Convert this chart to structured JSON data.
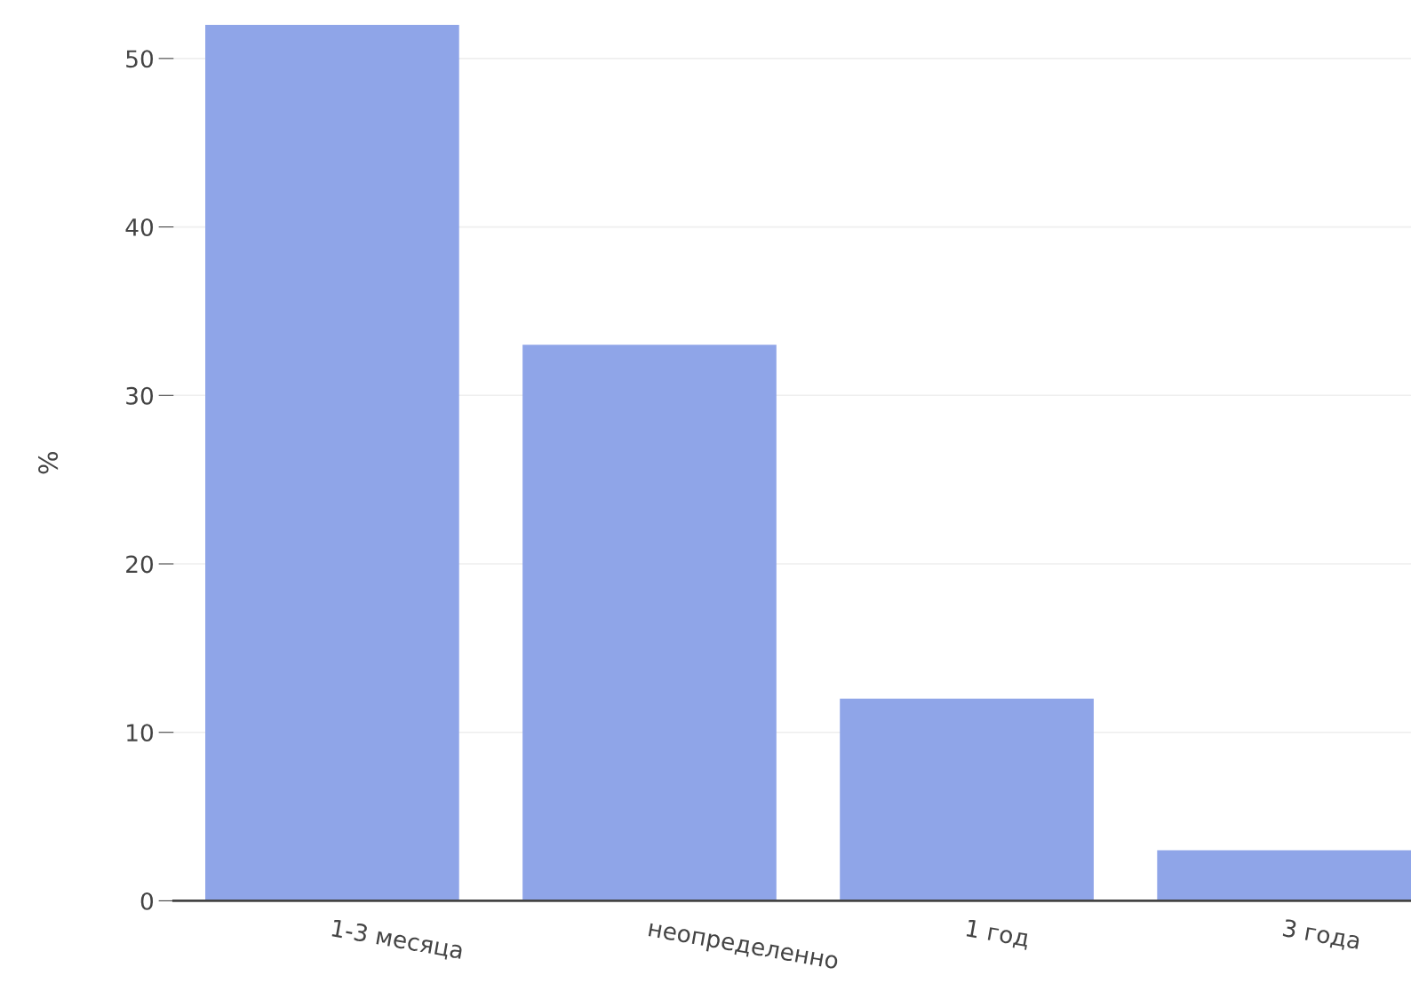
{
  "chart_data": {
    "type": "bar",
    "ylabel": "%",
    "categories": [
      "1-3 месяца",
      "неопределенно",
      "1 год",
      "3 года"
    ],
    "values": [
      52,
      33,
      12,
      3
    ],
    "color": "#8fa5e8",
    "ylim": [
      0,
      52
    ],
    "yticks": [
      0,
      10,
      20,
      30,
      40,
      50
    ],
    "grid": "y",
    "legend": false
  }
}
